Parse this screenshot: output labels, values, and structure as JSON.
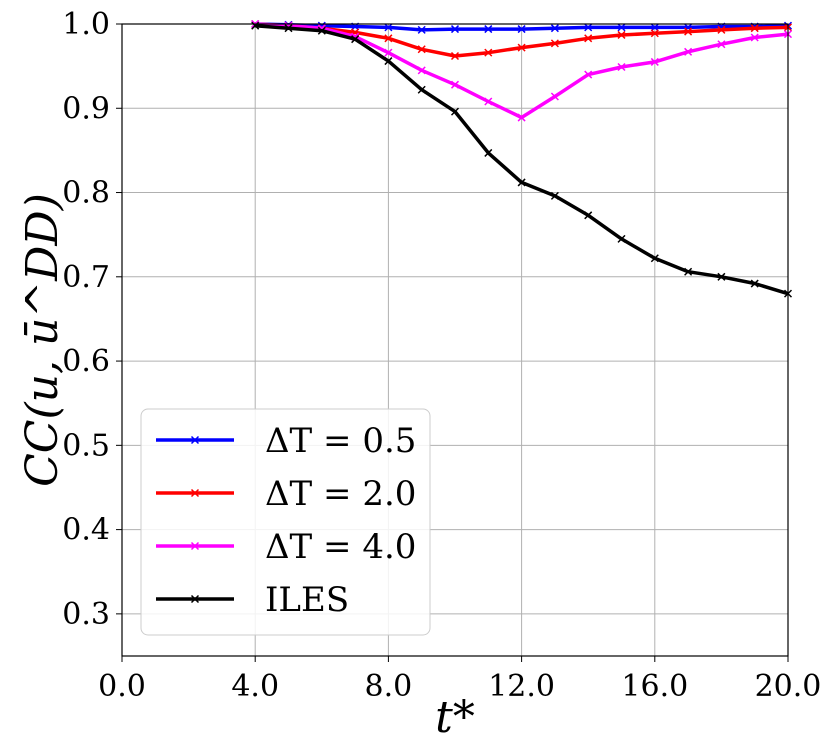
{
  "chart_data": {
    "type": "line",
    "title": "",
    "xlabel": "t*",
    "ylabel": "CC(u, ū^DD)",
    "xlim": [
      0,
      20
    ],
    "ylim": [
      0.25,
      1.0
    ],
    "grid": true,
    "legend_position": "lower-left",
    "x_ticks": [
      0,
      4,
      8,
      12,
      16,
      20
    ],
    "x_tick_labels": [
      "0.0",
      "4.0",
      "8.0",
      "12.0",
      "16.0",
      "20.0"
    ],
    "y_ticks": [
      0.3,
      0.4,
      0.5,
      0.6,
      0.7,
      0.8,
      0.9,
      1.0
    ],
    "y_tick_labels": [
      "0.3",
      "0.4",
      "0.5",
      "0.6",
      "0.7",
      "0.8",
      "0.9",
      "1.0"
    ],
    "x": [
      4,
      5,
      6,
      7,
      8,
      9,
      10,
      11,
      12,
      13,
      14,
      15,
      16,
      17,
      18,
      19,
      20
    ],
    "series": [
      {
        "name": "ΔT = 0.5",
        "color": "#0000ff",
        "values": [
          1.0,
          0.999,
          0.998,
          0.997,
          0.996,
          0.993,
          0.994,
          0.994,
          0.994,
          0.995,
          0.996,
          0.996,
          0.996,
          0.996,
          0.997,
          0.997,
          0.998
        ]
      },
      {
        "name": "ΔT = 2.0",
        "color": "#ff0000",
        "values": [
          1.0,
          0.998,
          0.995,
          0.99,
          0.983,
          0.97,
          0.962,
          0.966,
          0.972,
          0.977,
          0.983,
          0.987,
          0.989,
          0.991,
          0.993,
          0.995,
          0.996
        ]
      },
      {
        "name": "ΔT = 4.0",
        "color": "#ff00ff",
        "values": [
          1.0,
          0.998,
          0.995,
          0.985,
          0.966,
          0.945,
          0.928,
          0.908,
          0.889,
          0.914,
          0.94,
          0.949,
          0.955,
          0.967,
          0.976,
          0.984,
          0.988
        ]
      },
      {
        "name": "ILES",
        "color": "#000000",
        "values": [
          0.998,
          0.995,
          0.992,
          0.982,
          0.956,
          0.922,
          0.896,
          0.847,
          0.812,
          0.796,
          0.773,
          0.745,
          0.722,
          0.706,
          0.7,
          0.692,
          0.68
        ]
      }
    ]
  }
}
